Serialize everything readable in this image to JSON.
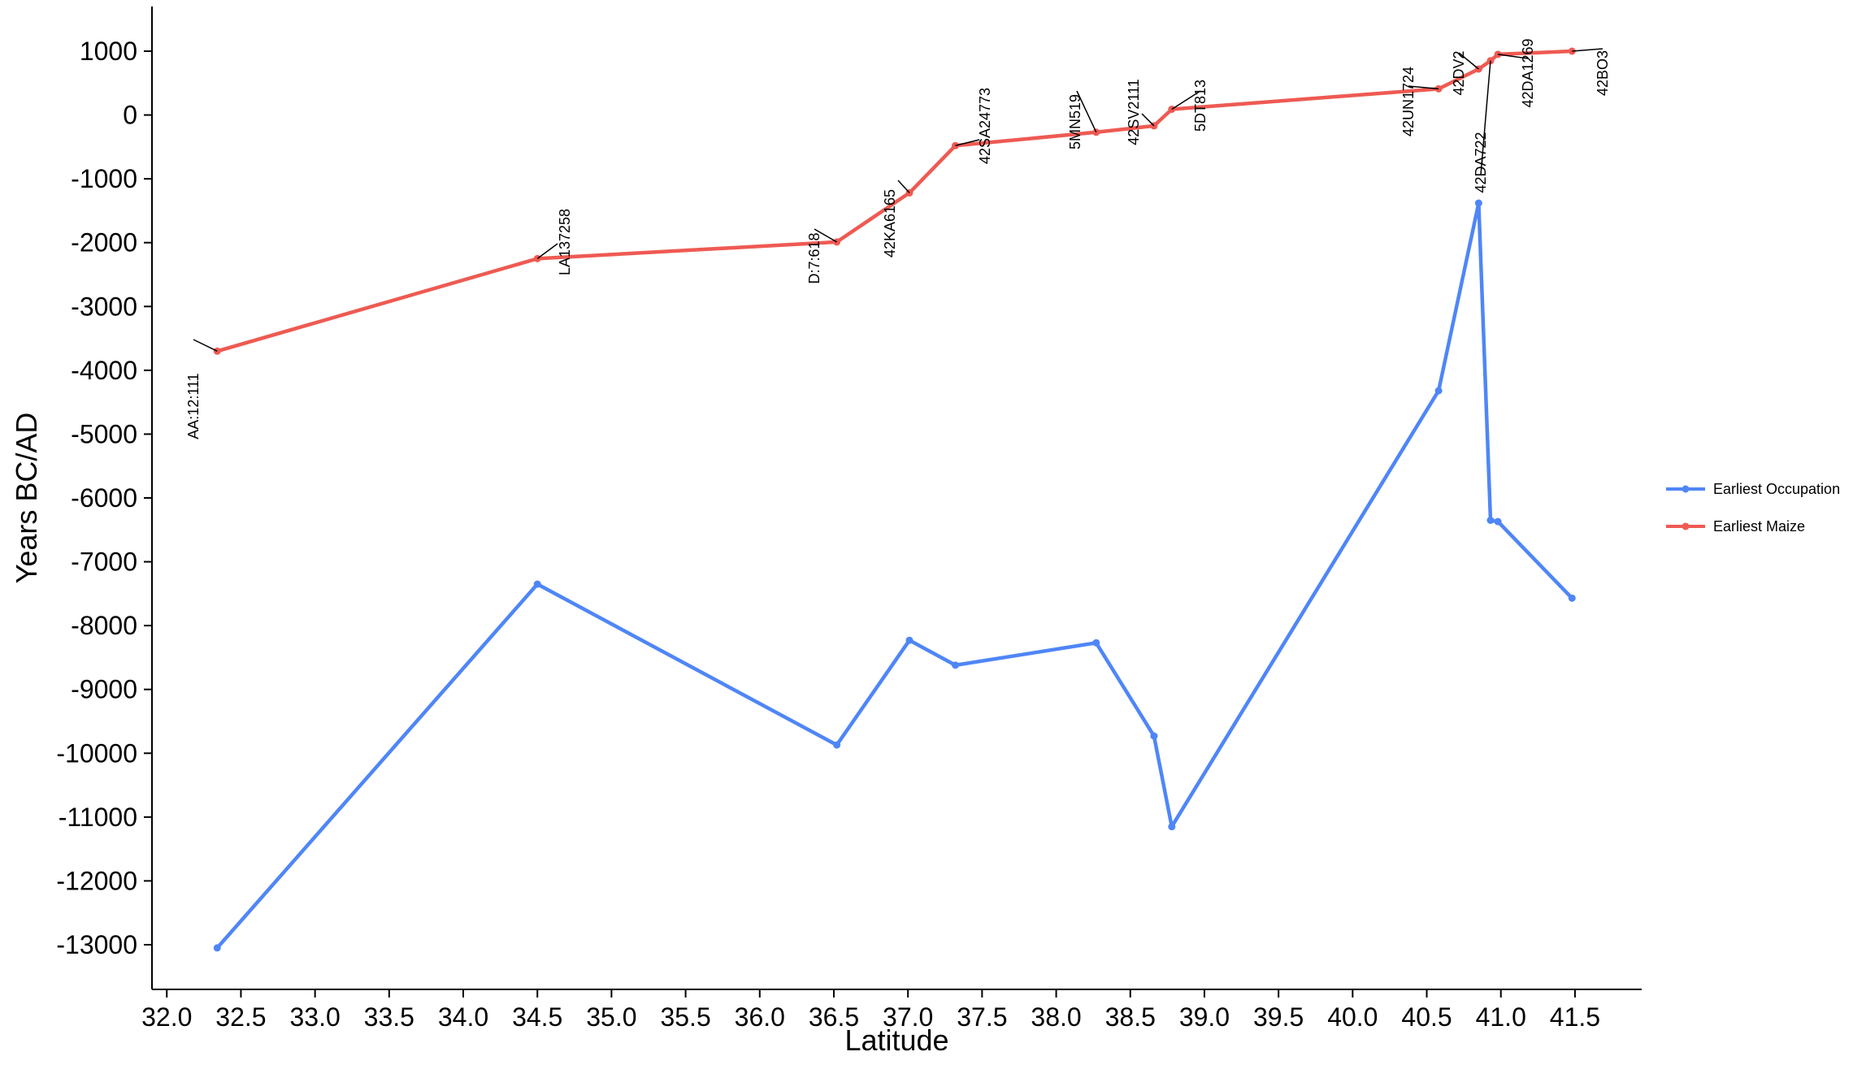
{
  "chart_data": {
    "type": "line",
    "title": "",
    "xlabel": "Latitude",
    "ylabel": "Years BC/AD",
    "xlim": [
      31.9,
      41.95
    ],
    "ylim": [
      -13700,
      1700
    ],
    "xticks": [
      "32.0",
      "32.5",
      "33.0",
      "33.5",
      "34.0",
      "34.5",
      "35.0",
      "35.5",
      "36.0",
      "36.5",
      "37.0",
      "37.5",
      "38.0",
      "38.5",
      "39.0",
      "39.5",
      "40.0",
      "40.5",
      "41.0",
      "41.5"
    ],
    "yticks": [
      "1000",
      "0",
      "-1000",
      "-2000",
      "-3000",
      "-4000",
      "-5000",
      "-6000",
      "-7000",
      "-8000",
      "-9000",
      "-10000",
      "-11000",
      "-12000",
      "-13000"
    ],
    "grid": false,
    "legend_position": "right",
    "colors": {
      "occupation": "#4f86f7",
      "maize": "#ee5a52"
    },
    "series": [
      {
        "name": "Earliest Occupation",
        "color": "#4f86f7",
        "x": [
          32.34,
          34.5,
          36.52,
          37.01,
          37.32,
          38.27,
          38.66,
          38.78,
          40.58,
          40.85,
          40.93,
          40.98,
          41.48
        ],
        "y": [
          -13050,
          -7350,
          -9870,
          -8230,
          -8620,
          -8270,
          -9730,
          -11150,
          -4320,
          -1380,
          -6350,
          -6370,
          -7570
        ]
      },
      {
        "name": "Earliest Maize",
        "color": "#ee5a52",
        "x": [
          32.34,
          34.5,
          36.52,
          37.01,
          37.32,
          38.27,
          38.66,
          38.78,
          40.58,
          40.85,
          40.93,
          40.98,
          41.48
        ],
        "y": [
          -3700,
          -2250,
          -1990,
          -1220,
          -480,
          -270,
          -170,
          90,
          410,
          720,
          850,
          950,
          1000
        ]
      }
    ],
    "annotations": [
      "AA:12:111",
      "LA137258",
      "D:7:618",
      "42KA6165",
      "42SA24773",
      "5MN519",
      "42SV2111",
      "5DT813",
      "42UN1724",
      "42DV2",
      "42DA722",
      "42DA1269",
      "42BO3"
    ]
  }
}
